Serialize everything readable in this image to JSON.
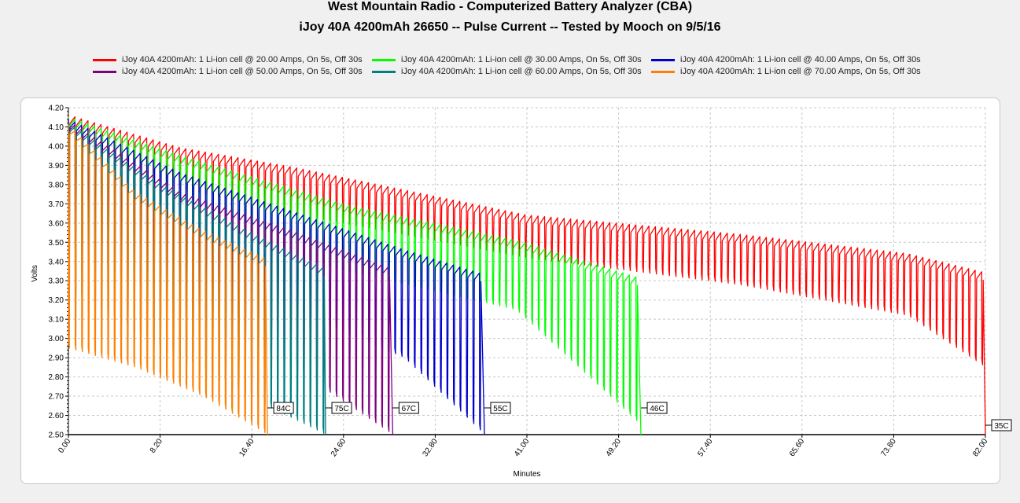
{
  "chart_data": {
    "type": "line",
    "title": "West Mountain Radio - Computerized Battery Analyzer (CBA)",
    "subtitle": "iJoy 40A 4200mAh 26650 -- Pulse Current -- Tested by Mooch on 9/5/16",
    "xlabel": "Minutes",
    "ylabel": "Volts",
    "xlim": [
      0,
      82
    ],
    "ylim": [
      2.5,
      4.2
    ],
    "x_ticks": [
      "0.00",
      "8.20",
      "16.40",
      "24.60",
      "32.80",
      "41.00",
      "49.20",
      "57.40",
      "65.60",
      "73.80",
      "82.00"
    ],
    "y_ticks": [
      "4.20",
      "4.10",
      "4.00",
      "3.90",
      "3.80",
      "3.70",
      "3.60",
      "3.50",
      "3.40",
      "3.30",
      "3.20",
      "3.10",
      "3.00",
      "2.90",
      "2.80",
      "2.70",
      "2.60",
      "2.50"
    ],
    "grid": true,
    "legend_position": "top",
    "pulse": {
      "on_s": 5,
      "off_s": 30
    },
    "series": [
      {
        "name": "iJoy 40A 4200mAh: 1 Li-ion cell @ 20.00 Amps, On 5s, Off 30s",
        "color": "#ff0000",
        "end_x": 82.0,
        "rest": {
          "x": [
            0,
            10,
            20,
            41,
            60,
            75,
            82
          ],
          "y": [
            4.15,
            3.98,
            3.88,
            3.63,
            3.53,
            3.43,
            3.33
          ]
        },
        "loaded": {
          "x": [
            0,
            10,
            20,
            41,
            60,
            75,
            82
          ],
          "y": [
            3.98,
            3.78,
            3.65,
            3.42,
            3.28,
            3.12,
            2.85
          ]
        },
        "end_label": "35C"
      },
      {
        "name": "iJoy 40A 4200mAh: 1 Li-ion cell @ 30.00 Amps, On 5s, Off 30s",
        "color": "#00ff00",
        "end_x": 51.2,
        "rest": {
          "x": [
            0,
            10,
            25,
            40,
            51.2
          ],
          "y": [
            4.14,
            3.94,
            3.68,
            3.5,
            3.3
          ]
        },
        "loaded": {
          "x": [
            0,
            10,
            25,
            40,
            51.2
          ],
          "y": [
            3.85,
            3.6,
            3.35,
            3.15,
            2.55
          ]
        },
        "end_label": "46C"
      },
      {
        "name": "iJoy 40A 4200mAh: 1 Li-ion cell @ 40.00 Amps, On 5s, Off 30s",
        "color": "#0000cc",
        "end_x": 37.2,
        "rest": {
          "x": [
            0,
            10,
            20,
            30,
            37.2
          ],
          "y": [
            4.13,
            3.85,
            3.65,
            3.45,
            3.32
          ]
        },
        "loaded": {
          "x": [
            0,
            10,
            20,
            30,
            37.2
          ],
          "y": [
            3.65,
            3.35,
            3.15,
            2.9,
            2.5
          ]
        },
        "end_label": "55C"
      },
      {
        "name": "iJoy 40A 4200mAh: 1 Li-ion cell @ 50.00 Amps, On 5s, Off 30s",
        "color": "#800080",
        "end_x": 29.0,
        "rest": {
          "x": [
            0,
            10,
            20,
            29
          ],
          "y": [
            4.12,
            3.75,
            3.55,
            3.35
          ]
        },
        "loaded": {
          "x": [
            0,
            10,
            20,
            29
          ],
          "y": [
            3.45,
            3.15,
            2.85,
            2.5
          ]
        },
        "end_label": "67C"
      },
      {
        "name": "iJoy 40A 4200mAh: 1 Li-ion cell @ 60.00 Amps, On 5s, Off 30s",
        "color": "#008080",
        "end_x": 23.0,
        "rest": {
          "x": [
            0,
            8,
            16,
            23
          ],
          "y": [
            4.11,
            3.8,
            3.55,
            3.35
          ]
        },
        "loaded": {
          "x": [
            0,
            8,
            16,
            23
          ],
          "y": [
            3.25,
            2.95,
            2.7,
            2.5
          ]
        },
        "end_label": "75C"
      },
      {
        "name": "iJoy 40A 4200mAh: 1 Li-ion cell @ 70.00 Amps, On 5s, Off 30s",
        "color": "#ff8000",
        "end_x": 17.8,
        "rest": {
          "x": [
            0,
            6,
            12,
            17.8
          ],
          "y": [
            4.1,
            3.75,
            3.55,
            3.4
          ]
        },
        "loaded": {
          "x": [
            0,
            6,
            12,
            17.8
          ],
          "y": [
            2.95,
            2.85,
            2.7,
            2.5
          ]
        },
        "end_label": "84C"
      }
    ]
  }
}
